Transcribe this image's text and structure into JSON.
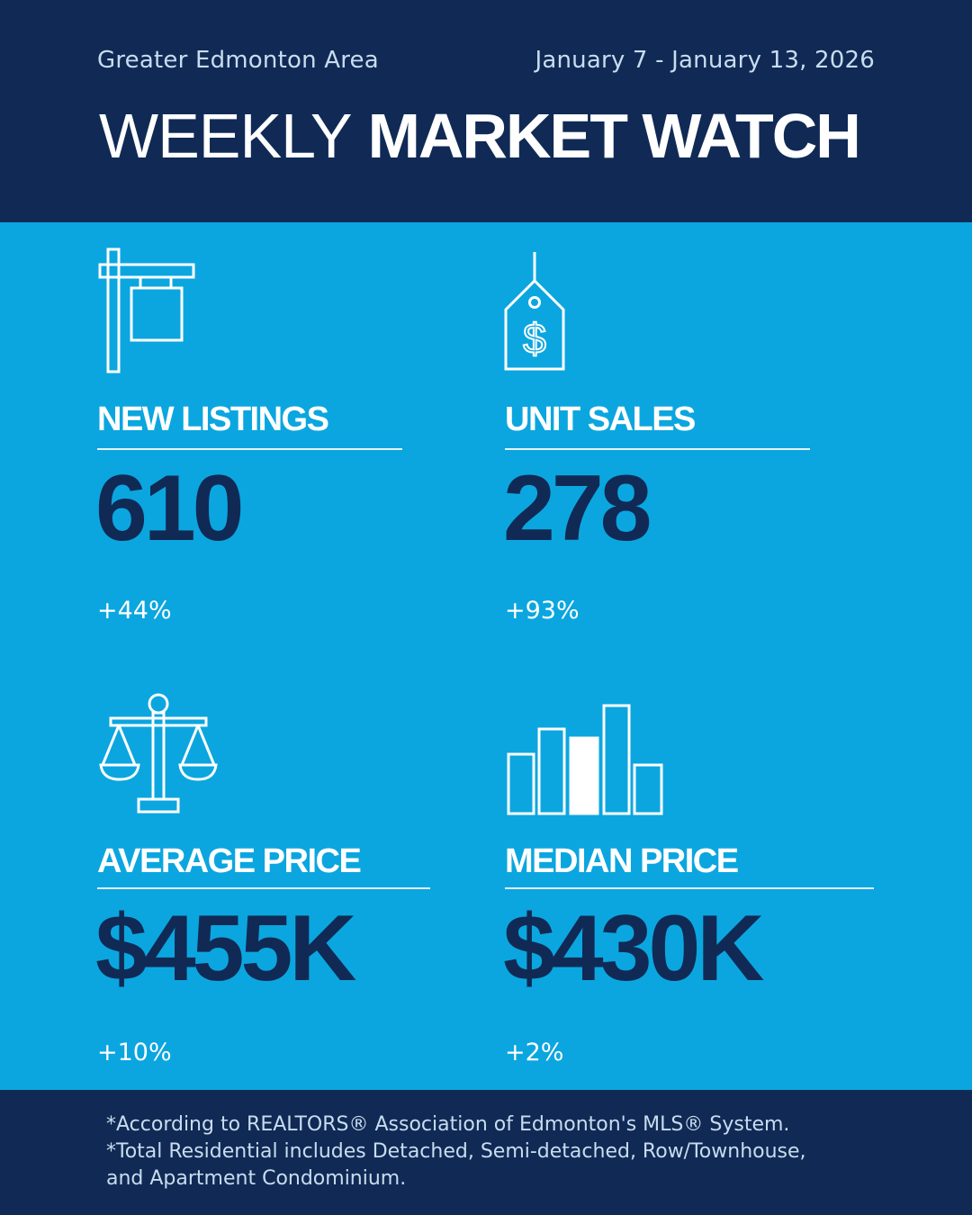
{
  "header": {
    "region": "Greater Edmonton Area",
    "date_range": "January 7 - January 13, 2026",
    "title_light": "WEEKLY",
    "title_bold": "MARKET WATCH"
  },
  "stats": {
    "new_listings": {
      "label": "NEW LISTINGS",
      "value": "610",
      "change": "+44%",
      "icon": "for-sale-sign-icon"
    },
    "unit_sales": {
      "label": "UNIT SALES",
      "value": "278",
      "change": "+93%",
      "icon": "price-tag-icon"
    },
    "average_price": {
      "label": "AVERAGE PRICE",
      "value": "$455K",
      "change": "+10%",
      "icon": "scales-icon"
    },
    "median_price": {
      "label": "MEDIAN PRICE",
      "value": "$430K",
      "change": "+2%",
      "icon": "bar-chart-icon"
    }
  },
  "footer": {
    "line1": "*According to REALTORS® Association of Edmonton's MLS® System.",
    "line2": "*Total Residential includes Detached, Semi-detached, Row/Townhouse,",
    "line3": "and Apartment Condominium."
  },
  "colors": {
    "navy": "#102a55",
    "sky": "#0ba6df",
    "white": "#ffffff"
  }
}
